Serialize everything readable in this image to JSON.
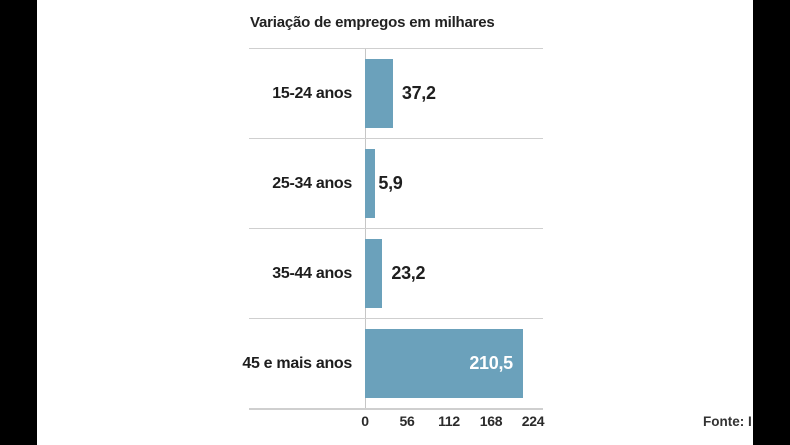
{
  "title": "Variação de empregos em milhares",
  "source": "Fonte: I",
  "colors": {
    "bar": "#6BA1BB",
    "grid_line": "#CFCFCF",
    "text": "#1F1F1F",
    "value_inside": "#FFFFFF",
    "letterbox": "#000000"
  },
  "chart_data": {
    "type": "bar",
    "orientation": "horizontal",
    "title": "Variação de empregos em milhares",
    "categories": [
      "15-24 anos",
      "25-34 anos",
      "35-44 anos",
      "45 e mais anos"
    ],
    "values": [
      37.2,
      5.9,
      23.2,
      210.5
    ],
    "value_labels": [
      "37,2",
      "5,9",
      "23,2",
      "210,5"
    ],
    "x_ticks": [
      "0",
      "56",
      "112",
      "168",
      "224"
    ],
    "x_tick_values": [
      0,
      56,
      112,
      168,
      224
    ],
    "xlim": [
      0,
      224
    ],
    "xlabel": "",
    "ylabel": "",
    "legend": "none",
    "grid": "horizontal row separators, zero baseline"
  }
}
